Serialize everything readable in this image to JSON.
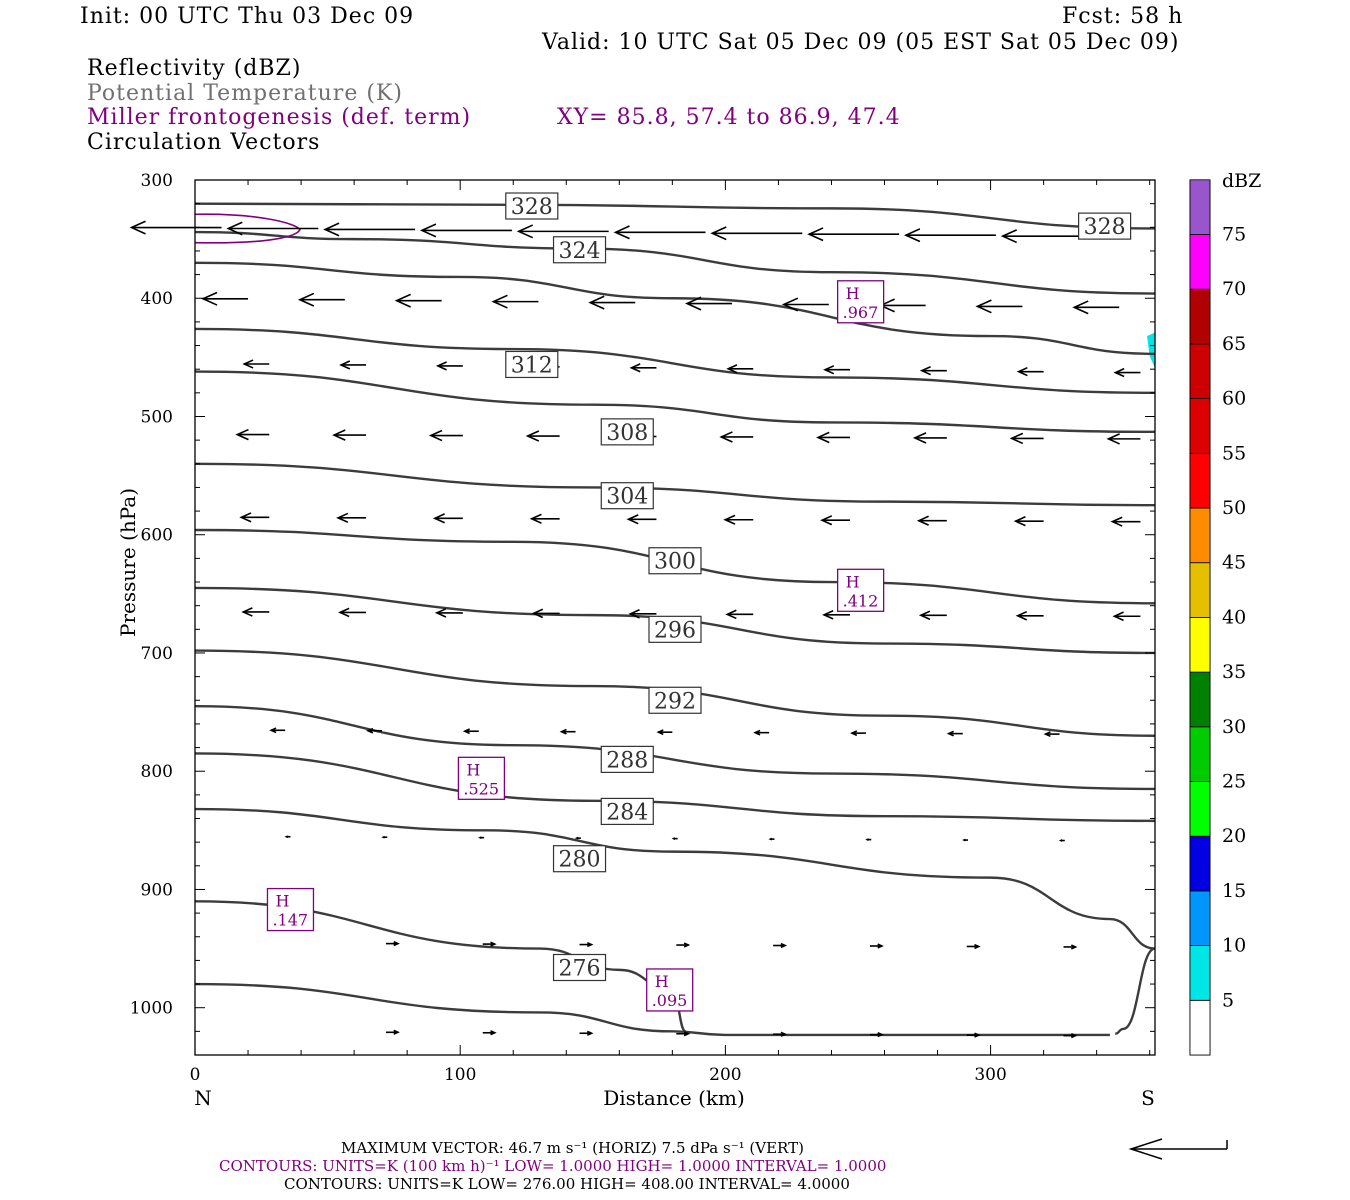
{
  "header": {
    "init": "Init: 00 UTC Thu 03 Dec 09",
    "fcst": "Fcst:   58 h",
    "valid": "Valid: 10 UTC Sat 05 Dec 09 (05 EST Sat 05 Dec 09)"
  },
  "fields": {
    "reflectivity": "Reflectivity (dBZ)",
    "theta": "Potential Temperature (K)",
    "miller": "Miller frontogenesis (def. term)",
    "xy": "XY=  85.8, 57.4 to  86.9, 47.4",
    "vectors": "Circulation Vectors"
  },
  "colors": {
    "purple": "#800080",
    "contour": "#3c3c3c"
  },
  "chart_data": {
    "type": "contour",
    "ylabel": "Pressure (hPa)",
    "xlabel": "Distance (km)",
    "x_left_label": "N",
    "x_right_label": "S",
    "xlim": [
      0,
      362
    ],
    "ylim_inverted": [
      1040,
      300
    ],
    "yticks": [
      300,
      400,
      500,
      600,
      700,
      800,
      900,
      1000
    ],
    "xticks": [
      0,
      100,
      200,
      300
    ],
    "theta_contours": [
      {
        "value": "328",
        "points": [
          [
            0,
            320
          ],
          [
            120,
            321
          ],
          [
            240,
            324
          ],
          [
            362,
            341
          ]
        ]
      },
      {
        "value": "324",
        "points": [
          [
            0,
            344
          ],
          [
            60,
            350
          ],
          [
            145,
            358
          ],
          [
            240,
            378
          ],
          [
            362,
            396
          ]
        ]
      },
      {
        "value": "312",
        "points": [
          [
            0,
            370
          ],
          [
            100,
            382
          ],
          [
            180,
            400
          ],
          [
            300,
            432
          ],
          [
            362,
            447
          ]
        ]
      },
      {
        "value": "308",
        "points": [
          [
            0,
            426
          ],
          [
            120,
            443
          ],
          [
            240,
            467
          ],
          [
            362,
            480
          ]
        ]
      },
      {
        "value": "304",
        "points": [
          [
            0,
            462
          ],
          [
            150,
            490
          ],
          [
            240,
            505
          ],
          [
            362,
            513
          ]
        ]
      },
      {
        "value": "300",
        "points": [
          [
            0,
            540
          ],
          [
            150,
            560
          ],
          [
            260,
            572
          ],
          [
            362,
            575
          ]
        ]
      },
      {
        "value": "296",
        "points": [
          [
            0,
            596
          ],
          [
            120,
            606
          ],
          [
            240,
            640
          ],
          [
            362,
            658
          ]
        ]
      },
      {
        "value": "292",
        "points": [
          [
            0,
            645
          ],
          [
            150,
            668
          ],
          [
            260,
            692
          ],
          [
            362,
            700
          ]
        ]
      },
      {
        "value": "288",
        "points": [
          [
            0,
            698
          ],
          [
            150,
            728
          ],
          [
            260,
            753
          ],
          [
            362,
            770
          ]
        ]
      },
      {
        "value": "284",
        "points": [
          [
            0,
            745
          ],
          [
            120,
            778
          ],
          [
            240,
            802
          ],
          [
            362,
            815
          ]
        ]
      },
      {
        "value": "280",
        "points": [
          [
            0,
            785
          ],
          [
            150,
            825
          ],
          [
            260,
            838
          ],
          [
            362,
            842
          ]
        ]
      },
      {
        "value": "276",
        "points": [
          [
            0,
            832
          ],
          [
            110,
            850
          ],
          [
            180,
            868
          ],
          [
            300,
            890
          ],
          [
            345,
            925
          ],
          [
            362,
            950
          ],
          [
            350,
            1018
          ],
          [
            347,
            1022
          ]
        ]
      },
      {
        "value": "",
        "points": [
          [
            0,
            910
          ],
          [
            130,
            950
          ],
          [
            160,
            968
          ],
          [
            180,
            985
          ],
          [
            185,
            1020
          ]
        ]
      },
      {
        "value": "",
        "points": [
          [
            0,
            980
          ],
          [
            130,
            1004
          ],
          [
            180,
            1020
          ],
          [
            200,
            1023
          ],
          [
            345,
            1023
          ]
        ]
      }
    ],
    "contour_labels": [
      {
        "text": "328",
        "x": 127,
        "p": 322
      },
      {
        "text": "328",
        "x": 343,
        "p": 339
      },
      {
        "text": "324",
        "x": 145,
        "p": 359
      },
      {
        "text": "312",
        "x": 127,
        "p": 456
      },
      {
        "text": "308",
        "x": 163,
        "p": 513
      },
      {
        "text": "304",
        "x": 163,
        "p": 567
      },
      {
        "text": "300",
        "x": 181,
        "p": 622
      },
      {
        "text": "296",
        "x": 181,
        "p": 680
      },
      {
        "text": "292",
        "x": 181,
        "p": 740
      },
      {
        "text": "288",
        "x": 163,
        "p": 790
      },
      {
        "text": "284",
        "x": 163,
        "p": 834
      },
      {
        "text": "280",
        "x": 145,
        "p": 874
      },
      {
        "text": "276",
        "x": 145,
        "p": 966
      }
    ],
    "frontogenesis_maxima": [
      {
        "label": "H",
        "value": ".967",
        "x": 251,
        "p": 403
      },
      {
        "label": "H",
        "value": ".412",
        "x": 251,
        "p": 647
      },
      {
        "label": "H",
        "value": ".525",
        "x": 108,
        "p": 806
      },
      {
        "label": "H",
        "value": ".147",
        "x": 36,
        "p": 917
      },
      {
        "label": "H",
        "value": ".095",
        "x": 179,
        "p": 985
      }
    ],
    "colorbar": {
      "unit": "dBZ",
      "levels": [
        {
          "label": "",
          "color": "#ffffff"
        },
        {
          "label": "5",
          "color": "#00e5e5"
        },
        {
          "label": "10",
          "color": "#0096ff"
        },
        {
          "label": "15",
          "color": "#0000e0"
        },
        {
          "label": "20",
          "color": "#00ff00"
        },
        {
          "label": "25",
          "color": "#00cc00"
        },
        {
          "label": "30",
          "color": "#008000"
        },
        {
          "label": "35",
          "color": "#ffff00"
        },
        {
          "label": "40",
          "color": "#e6c000"
        },
        {
          "label": "45",
          "color": "#ff8c00"
        },
        {
          "label": "50",
          "color": "#ff0000"
        },
        {
          "label": "55",
          "color": "#dd0000"
        },
        {
          "label": "60",
          "color": "#cc0000"
        },
        {
          "label": "65",
          "color": "#b00000"
        },
        {
          "label": "70",
          "color": "#ff00ff"
        },
        {
          "label": "75",
          "color": "#9955cc"
        }
      ]
    }
  },
  "footer": {
    "max_vector": "MAXIMUM VECTOR:  46.7 m s⁻¹ (HORIZ)          7.5 dPa s⁻¹ (VERT)",
    "contours1": "CONTOURS:  UNITS=K (100 km h)⁻¹  LOW=   1.0000       HIGH=   1.0000        INTERVAL=    1.0000",
    "contours2": "CONTOURS:  UNITS=K   LOW=   276.00        HIGH=   408.00        INTERVAL=     4.0000"
  }
}
